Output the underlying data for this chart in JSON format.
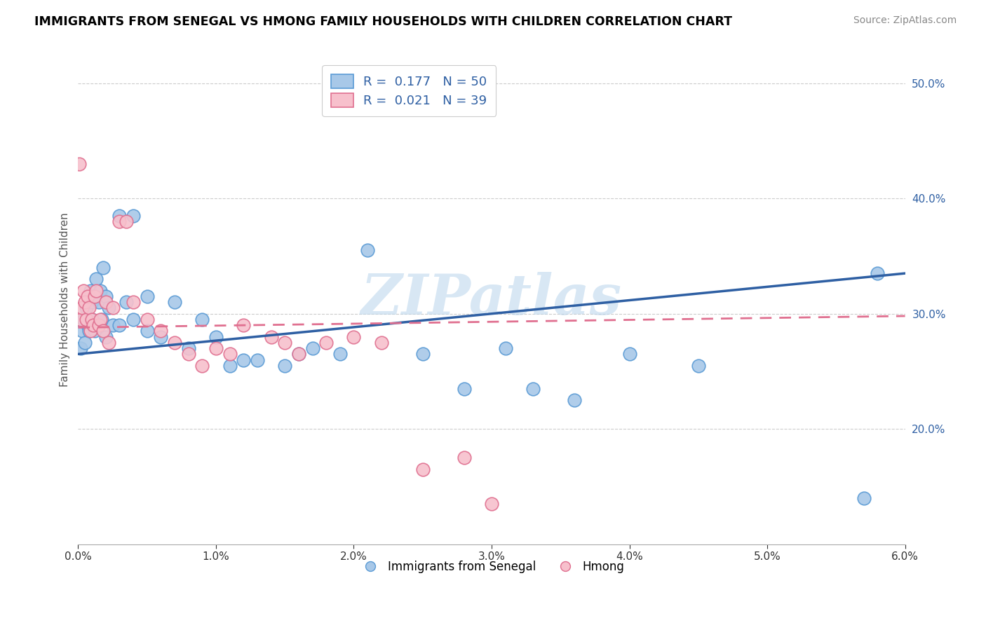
{
  "title": "IMMIGRANTS FROM SENEGAL VS HMONG FAMILY HOUSEHOLDS WITH CHILDREN CORRELATION CHART",
  "source": "Source: ZipAtlas.com",
  "ylabel": "Family Households with Children",
  "xlabel_blue": "Immigrants from Senegal",
  "xlabel_pink": "Hmong",
  "watermark": "ZIPatlas",
  "legend_blue_R": "0.177",
  "legend_blue_N": "50",
  "legend_pink_R": "0.021",
  "legend_pink_N": "39",
  "xlim": [
    0.0,
    0.06
  ],
  "ylim": [
    0.1,
    0.525
  ],
  "xticks": [
    0.0,
    0.01,
    0.02,
    0.03,
    0.04,
    0.05,
    0.06
  ],
  "color_blue": "#a8c8e8",
  "color_blue_edge": "#5b9bd5",
  "color_blue_line": "#2e5fa3",
  "color_pink": "#f7c0cc",
  "color_pink_edge": "#e07090",
  "color_pink_line": "#e07090",
  "blue_scatter_x": [
    0.0002,
    0.0003,
    0.0004,
    0.0005,
    0.0006,
    0.0007,
    0.0008,
    0.0009,
    0.001,
    0.001,
    0.0011,
    0.0012,
    0.0013,
    0.0015,
    0.0016,
    0.0017,
    0.0018,
    0.002,
    0.002,
    0.0022,
    0.0025,
    0.003,
    0.003,
    0.0035,
    0.004,
    0.004,
    0.005,
    0.005,
    0.006,
    0.007,
    0.008,
    0.009,
    0.01,
    0.011,
    0.012,
    0.013,
    0.015,
    0.016,
    0.017,
    0.019,
    0.021,
    0.025,
    0.028,
    0.031,
    0.033,
    0.036,
    0.04,
    0.045,
    0.058,
    0.057
  ],
  "blue_scatter_y": [
    0.27,
    0.285,
    0.295,
    0.275,
    0.305,
    0.29,
    0.285,
    0.32,
    0.31,
    0.295,
    0.315,
    0.285,
    0.33,
    0.31,
    0.32,
    0.295,
    0.34,
    0.28,
    0.315,
    0.305,
    0.29,
    0.385,
    0.29,
    0.31,
    0.385,
    0.295,
    0.285,
    0.315,
    0.28,
    0.31,
    0.27,
    0.295,
    0.28,
    0.255,
    0.26,
    0.26,
    0.255,
    0.265,
    0.27,
    0.265,
    0.355,
    0.265,
    0.235,
    0.27,
    0.235,
    0.225,
    0.265,
    0.255,
    0.335,
    0.14
  ],
  "pink_scatter_x": [
    0.0001,
    0.0002,
    0.0003,
    0.0004,
    0.0005,
    0.0006,
    0.0007,
    0.0008,
    0.0009,
    0.001,
    0.0011,
    0.0012,
    0.0013,
    0.0015,
    0.0016,
    0.0018,
    0.002,
    0.0022,
    0.0025,
    0.003,
    0.0035,
    0.004,
    0.005,
    0.006,
    0.007,
    0.008,
    0.009,
    0.01,
    0.011,
    0.012,
    0.014,
    0.015,
    0.016,
    0.018,
    0.02,
    0.022,
    0.025,
    0.028,
    0.03
  ],
  "pink_scatter_y": [
    0.43,
    0.295,
    0.305,
    0.32,
    0.31,
    0.295,
    0.315,
    0.305,
    0.285,
    0.295,
    0.29,
    0.315,
    0.32,
    0.29,
    0.295,
    0.285,
    0.31,
    0.275,
    0.305,
    0.38,
    0.38,
    0.31,
    0.295,
    0.285,
    0.275,
    0.265,
    0.255,
    0.27,
    0.265,
    0.29,
    0.28,
    0.275,
    0.265,
    0.275,
    0.28,
    0.275,
    0.165,
    0.175,
    0.135
  ],
  "blue_trendline_x": [
    0.0,
    0.06
  ],
  "blue_trendline_y": [
    0.265,
    0.335
  ],
  "pink_trendline_x": [
    0.0,
    0.06
  ],
  "pink_trendline_y": [
    0.288,
    0.298
  ]
}
